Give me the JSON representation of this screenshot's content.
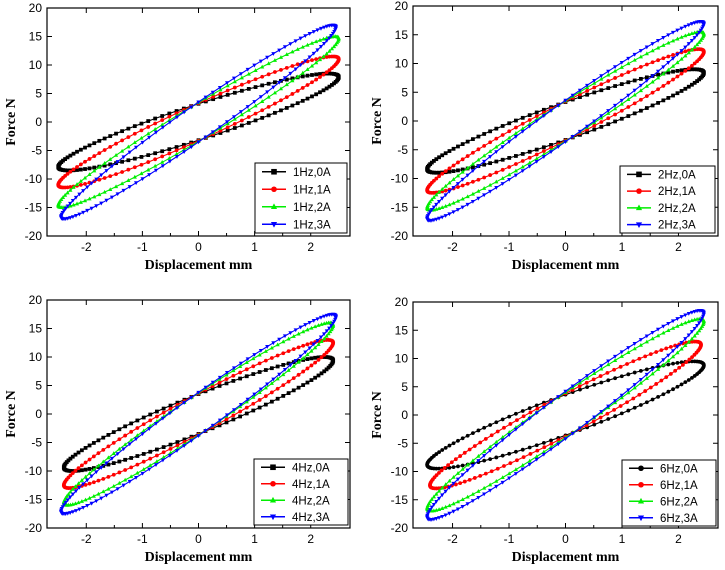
{
  "colors": {
    "axis": "#000000",
    "legend_border": "#000000"
  },
  "chart_data": [
    {
      "type": "line",
      "title": "",
      "xlabel": "Displacement mm",
      "ylabel": "Force N",
      "xlim": [
        -2.7,
        2.7
      ],
      "ylim": [
        -20,
        20
      ],
      "xticks": [
        "-2",
        "-1",
        "0",
        "1",
        "2"
      ],
      "yticks": [
        "-20",
        "-15",
        "-10",
        "-5",
        "0",
        "5",
        "10",
        "15",
        "20"
      ],
      "legend_position": "bottom-right",
      "series": [
        {
          "name": "1Hz,0A",
          "color": "#000000",
          "marker": "square",
          "amplitude": 2.5,
          "peak_force": 8.5,
          "zero_disp_force": 3.2
        },
        {
          "name": "1Hz,1A",
          "color": "#ff0000",
          "marker": "circle",
          "amplitude": 2.5,
          "peak_force": 11.5,
          "zero_disp_force": 3.3
        },
        {
          "name": "1Hz,2A",
          "color": "#00ee00",
          "marker": "triangle-up",
          "amplitude": 2.5,
          "peak_force": 15,
          "zero_disp_force": 3.4
        },
        {
          "name": "1Hz,3A",
          "color": "#0000ff",
          "marker": "triangle-down",
          "amplitude": 2.45,
          "peak_force": 17,
          "zero_disp_force": 3.5
        }
      ]
    },
    {
      "type": "line",
      "title": "",
      "xlabel": "Displacement mm",
      "ylabel": "Force N",
      "xlim": [
        -2.7,
        2.7
      ],
      "ylim": [
        -20,
        20
      ],
      "xticks": [
        "-2",
        "-1",
        "0",
        "1",
        "2"
      ],
      "yticks": [
        "-20",
        "-15",
        "-10",
        "-5",
        "0",
        "5",
        "10",
        "15",
        "20"
      ],
      "legend_position": "bottom-right",
      "series": [
        {
          "name": "2Hz,0A",
          "color": "#000000",
          "marker": "square",
          "amplitude": 2.45,
          "peak_force": 9,
          "zero_disp_force": 3.3
        },
        {
          "name": "2Hz,1A",
          "color": "#ff0000",
          "marker": "circle",
          "amplitude": 2.45,
          "peak_force": 12.5,
          "zero_disp_force": 3.4
        },
        {
          "name": "2Hz,2A",
          "color": "#00ee00",
          "marker": "triangle-up",
          "amplitude": 2.45,
          "peak_force": 15.5,
          "zero_disp_force": 3.5
        },
        {
          "name": "2Hz,3A",
          "color": "#0000ff",
          "marker": "triangle-down",
          "amplitude": 2.45,
          "peak_force": 17.3,
          "zero_disp_force": 3.6
        }
      ]
    },
    {
      "type": "line",
      "title": "",
      "xlabel": "Displacement mm",
      "ylabel": "Force N",
      "xlim": [
        -2.7,
        2.7
      ],
      "ylim": [
        -20,
        20
      ],
      "xticks": [
        "-2",
        "-1",
        "0",
        "1",
        "2"
      ],
      "yticks": [
        "-20",
        "-15",
        "-10",
        "-5",
        "0",
        "5",
        "10",
        "15",
        "20"
      ],
      "legend_position": "bottom-right",
      "series": [
        {
          "name": "4Hz,0A",
          "color": "#000000",
          "marker": "square",
          "amplitude": 2.4,
          "peak_force": 10,
          "zero_disp_force": 3.5
        },
        {
          "name": "4Hz,1A",
          "color": "#ff0000",
          "marker": "circle",
          "amplitude": 2.4,
          "peak_force": 13,
          "zero_disp_force": 3.6
        },
        {
          "name": "4Hz,2A",
          "color": "#00ee00",
          "marker": "triangle-up",
          "amplitude": 2.4,
          "peak_force": 16,
          "zero_disp_force": 3.7
        },
        {
          "name": "4Hz,3A",
          "color": "#0000ff",
          "marker": "triangle-down",
          "amplitude": 2.45,
          "peak_force": 17.5,
          "zero_disp_force": 3.8
        }
      ]
    },
    {
      "type": "line",
      "title": "",
      "xlabel": "Displacement mm",
      "ylabel": "Force N",
      "xlim": [
        -2.7,
        2.7
      ],
      "ylim": [
        -20,
        20
      ],
      "xticks": [
        "-2",
        "-1",
        "0",
        "1",
        "2"
      ],
      "yticks": [
        "-20",
        "-15",
        "-10",
        "-5",
        "0",
        "5",
        "10",
        "15",
        "20"
      ],
      "legend_position": "bottom-right",
      "series": [
        {
          "name": "6Hz,0A",
          "color": "#000000",
          "marker": "circle",
          "amplitude": 2.45,
          "peak_force": 9.5,
          "zero_disp_force": 3.6
        },
        {
          "name": "6Hz,1A",
          "color": "#ff0000",
          "marker": "circle",
          "amplitude": 2.4,
          "peak_force": 13,
          "zero_disp_force": 3.8
        },
        {
          "name": "6Hz,2A",
          "color": "#00ee00",
          "marker": "triangle-up",
          "amplitude": 2.45,
          "peak_force": 17,
          "zero_disp_force": 4.0
        },
        {
          "name": "6Hz,3A",
          "color": "#0000ff",
          "marker": "triangle-down",
          "amplitude": 2.45,
          "peak_force": 18.5,
          "zero_disp_force": 4.2
        }
      ]
    }
  ]
}
